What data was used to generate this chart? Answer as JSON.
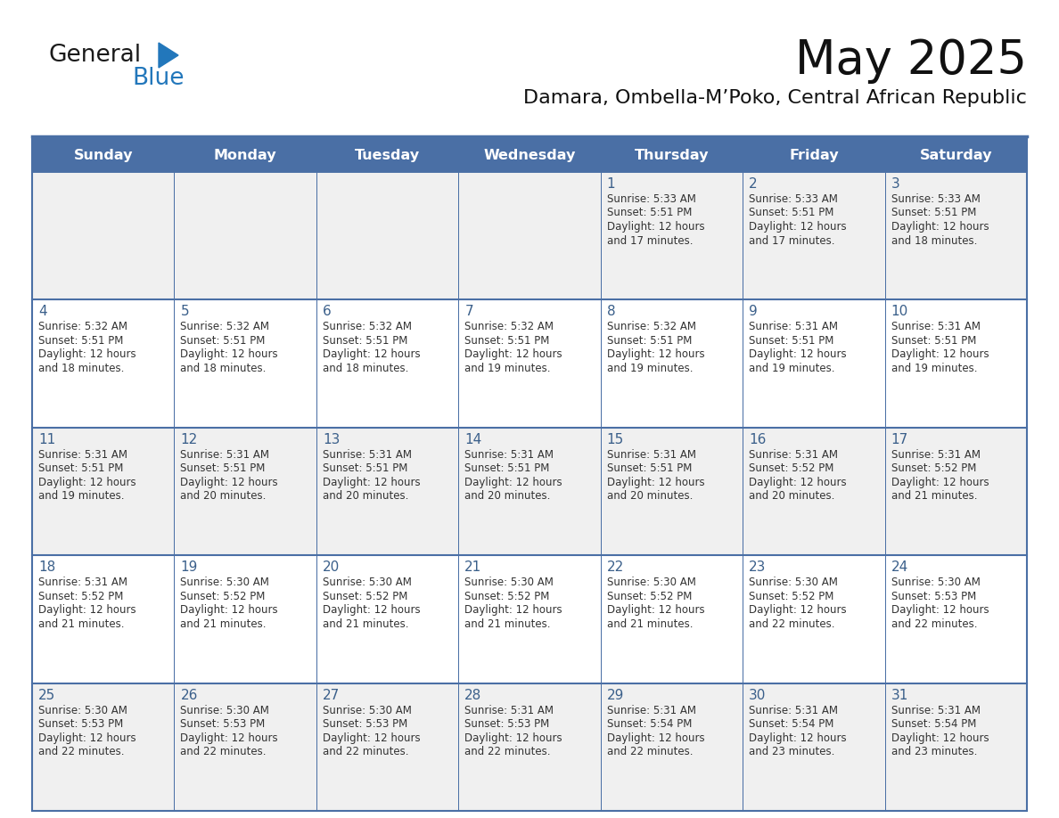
{
  "title": "May 2025",
  "subtitle": "Damara, Ombella-M’Poko, Central African Republic",
  "header_bg": "#4a6fa5",
  "header_text": "#ffffff",
  "row_bg_odd": "#f0f0f0",
  "row_bg_even": "#ffffff",
  "day_names": [
    "Sunday",
    "Monday",
    "Tuesday",
    "Wednesday",
    "Thursday",
    "Friday",
    "Saturday"
  ],
  "day_number_color": "#3a5f8a",
  "cell_text_color": "#333333",
  "grid_color": "#4a6fa5",
  "logo_general_color": "#1a1a1a",
  "logo_blue_color": "#2277bb",
  "weeks": [
    [
      null,
      null,
      null,
      null,
      {
        "day": 1,
        "sunrise": "5:33 AM",
        "sunset": "5:51 PM",
        "daylight_hours": "12 hours",
        "daylight_mins": "and 17 minutes."
      },
      {
        "day": 2,
        "sunrise": "5:33 AM",
        "sunset": "5:51 PM",
        "daylight_hours": "12 hours",
        "daylight_mins": "and 17 minutes."
      },
      {
        "day": 3,
        "sunrise": "5:33 AM",
        "sunset": "5:51 PM",
        "daylight_hours": "12 hours",
        "daylight_mins": "and 18 minutes."
      }
    ],
    [
      {
        "day": 4,
        "sunrise": "5:32 AM",
        "sunset": "5:51 PM",
        "daylight_hours": "12 hours",
        "daylight_mins": "and 18 minutes."
      },
      {
        "day": 5,
        "sunrise": "5:32 AM",
        "sunset": "5:51 PM",
        "daylight_hours": "12 hours",
        "daylight_mins": "and 18 minutes."
      },
      {
        "day": 6,
        "sunrise": "5:32 AM",
        "sunset": "5:51 PM",
        "daylight_hours": "12 hours",
        "daylight_mins": "and 18 minutes."
      },
      {
        "day": 7,
        "sunrise": "5:32 AM",
        "sunset": "5:51 PM",
        "daylight_hours": "12 hours",
        "daylight_mins": "and 19 minutes."
      },
      {
        "day": 8,
        "sunrise": "5:32 AM",
        "sunset": "5:51 PM",
        "daylight_hours": "12 hours",
        "daylight_mins": "and 19 minutes."
      },
      {
        "day": 9,
        "sunrise": "5:31 AM",
        "sunset": "5:51 PM",
        "daylight_hours": "12 hours",
        "daylight_mins": "and 19 minutes."
      },
      {
        "day": 10,
        "sunrise": "5:31 AM",
        "sunset": "5:51 PM",
        "daylight_hours": "12 hours",
        "daylight_mins": "and 19 minutes."
      }
    ],
    [
      {
        "day": 11,
        "sunrise": "5:31 AM",
        "sunset": "5:51 PM",
        "daylight_hours": "12 hours",
        "daylight_mins": "and 19 minutes."
      },
      {
        "day": 12,
        "sunrise": "5:31 AM",
        "sunset": "5:51 PM",
        "daylight_hours": "12 hours",
        "daylight_mins": "and 20 minutes."
      },
      {
        "day": 13,
        "sunrise": "5:31 AM",
        "sunset": "5:51 PM",
        "daylight_hours": "12 hours",
        "daylight_mins": "and 20 minutes."
      },
      {
        "day": 14,
        "sunrise": "5:31 AM",
        "sunset": "5:51 PM",
        "daylight_hours": "12 hours",
        "daylight_mins": "and 20 minutes."
      },
      {
        "day": 15,
        "sunrise": "5:31 AM",
        "sunset": "5:51 PM",
        "daylight_hours": "12 hours",
        "daylight_mins": "and 20 minutes."
      },
      {
        "day": 16,
        "sunrise": "5:31 AM",
        "sunset": "5:52 PM",
        "daylight_hours": "12 hours",
        "daylight_mins": "and 20 minutes."
      },
      {
        "day": 17,
        "sunrise": "5:31 AM",
        "sunset": "5:52 PM",
        "daylight_hours": "12 hours",
        "daylight_mins": "and 21 minutes."
      }
    ],
    [
      {
        "day": 18,
        "sunrise": "5:31 AM",
        "sunset": "5:52 PM",
        "daylight_hours": "12 hours",
        "daylight_mins": "and 21 minutes."
      },
      {
        "day": 19,
        "sunrise": "5:30 AM",
        "sunset": "5:52 PM",
        "daylight_hours": "12 hours",
        "daylight_mins": "and 21 minutes."
      },
      {
        "day": 20,
        "sunrise": "5:30 AM",
        "sunset": "5:52 PM",
        "daylight_hours": "12 hours",
        "daylight_mins": "and 21 minutes."
      },
      {
        "day": 21,
        "sunrise": "5:30 AM",
        "sunset": "5:52 PM",
        "daylight_hours": "12 hours",
        "daylight_mins": "and 21 minutes."
      },
      {
        "day": 22,
        "sunrise": "5:30 AM",
        "sunset": "5:52 PM",
        "daylight_hours": "12 hours",
        "daylight_mins": "and 21 minutes."
      },
      {
        "day": 23,
        "sunrise": "5:30 AM",
        "sunset": "5:52 PM",
        "daylight_hours": "12 hours",
        "daylight_mins": "and 22 minutes."
      },
      {
        "day": 24,
        "sunrise": "5:30 AM",
        "sunset": "5:53 PM",
        "daylight_hours": "12 hours",
        "daylight_mins": "and 22 minutes."
      }
    ],
    [
      {
        "day": 25,
        "sunrise": "5:30 AM",
        "sunset": "5:53 PM",
        "daylight_hours": "12 hours",
        "daylight_mins": "and 22 minutes."
      },
      {
        "day": 26,
        "sunrise": "5:30 AM",
        "sunset": "5:53 PM",
        "daylight_hours": "12 hours",
        "daylight_mins": "and 22 minutes."
      },
      {
        "day": 27,
        "sunrise": "5:30 AM",
        "sunset": "5:53 PM",
        "daylight_hours": "12 hours",
        "daylight_mins": "and 22 minutes."
      },
      {
        "day": 28,
        "sunrise": "5:31 AM",
        "sunset": "5:53 PM",
        "daylight_hours": "12 hours",
        "daylight_mins": "and 22 minutes."
      },
      {
        "day": 29,
        "sunrise": "5:31 AM",
        "sunset": "5:54 PM",
        "daylight_hours": "12 hours",
        "daylight_mins": "and 22 minutes."
      },
      {
        "day": 30,
        "sunrise": "5:31 AM",
        "sunset": "5:54 PM",
        "daylight_hours": "12 hours",
        "daylight_mins": "and 23 minutes."
      },
      {
        "day": 31,
        "sunrise": "5:31 AM",
        "sunset": "5:54 PM",
        "daylight_hours": "12 hours",
        "daylight_mins": "and 23 minutes."
      }
    ]
  ]
}
